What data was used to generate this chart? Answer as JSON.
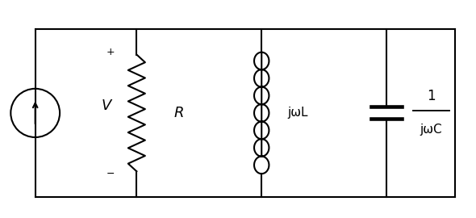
{
  "bg_color": "#ffffff",
  "line_color": "#000000",
  "line_width": 1.5,
  "fig_width": 5.9,
  "fig_height": 2.7,
  "dpi": 100,
  "labels": {
    "V": "V",
    "R": "R",
    "L": "jωL",
    "C_top": "1",
    "C_bot": "jωC",
    "plus": "+",
    "minus": "−"
  }
}
